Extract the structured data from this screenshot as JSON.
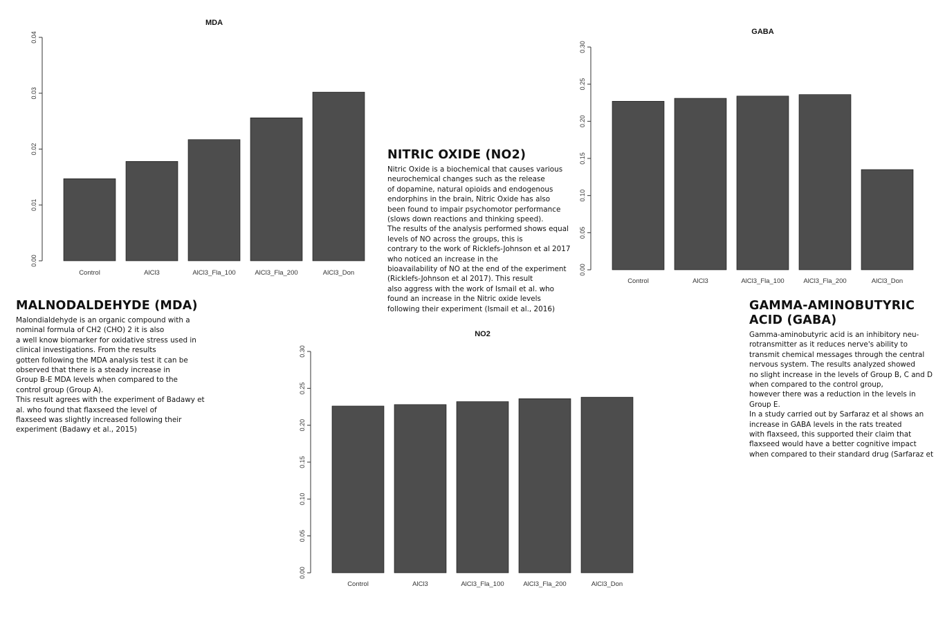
{
  "chart_data": [
    {
      "id": "mda",
      "type": "bar",
      "title": "MDA",
      "categories": [
        "Control",
        "AlCl3",
        "AlCl3_Fla_100",
        "AlCl3_Fla_200",
        "AlCl3_Don"
      ],
      "values": [
        0.0147,
        0.0178,
        0.0217,
        0.0256,
        0.0302
      ],
      "ylim": [
        0,
        0.04
      ],
      "yticks": [
        "0.00",
        "0.01",
        "0.02",
        "0.03",
        "0.04"
      ],
      "xlabel": "",
      "ylabel": "",
      "grid": false
    },
    {
      "id": "gaba",
      "type": "bar",
      "title": "GABA",
      "categories": [
        "Control",
        "AlCl3",
        "AlCl3_Fla_100",
        "AlCl3_Fla_200",
        "AlCl3_Don"
      ],
      "values": [
        0.227,
        0.231,
        0.234,
        0.236,
        0.135
      ],
      "ylim": [
        0,
        0.3
      ],
      "yticks": [
        "0.00",
        "0.05",
        "0.10",
        "0.15",
        "0.20",
        "0.25",
        "0.30"
      ],
      "xlabel": "",
      "ylabel": "",
      "grid": false
    },
    {
      "id": "no2",
      "type": "bar",
      "title": "NO2",
      "categories": [
        "Control",
        "AlCl3",
        "AlCl3_Fla_100",
        "AlCl3_Fla_200",
        "AlCl3_Don"
      ],
      "values": [
        0.226,
        0.228,
        0.232,
        0.236,
        0.238
      ],
      "ylim": [
        0,
        0.3
      ],
      "yticks": [
        "0.00",
        "0.05",
        "0.10",
        "0.15",
        "0.20",
        "0.25",
        "0.30"
      ],
      "xlabel": "",
      "ylabel": "",
      "grid": false
    }
  ],
  "colors": {
    "bar_fill": "#4d4d4d",
    "bar_stroke": "#111111",
    "text": "#111111"
  },
  "sections": {
    "nitric": {
      "heading": "NITRIC OXIDE (NO2)",
      "lines": [
        "Nitric Oxide is a biochemical that causes various",
        "neurochemical changes such as the release",
        "of dopamine, natural opioids and endogenous",
        "endorphins in the brain, Nitric Oxide has also",
        "been found to impair psychomotor performance",
        "(slows down reactions and thinking speed).",
        "The results of the analysis performed shows equal",
        "levels of NO across the groups, this is",
        "contrary to the work of Ricklefs-Johnson et al 2017",
        "who noticed an increase in the",
        "bioavailability of NO at the end of the experiment",
        "(Ricklefs-Johnson et al 2017). This result",
        "also aggress with the work of Ismail et al. who",
        "found an increase in the Nitric oxide levels",
        "following their experiment (Ismail et al., 2016)"
      ]
    },
    "mda": {
      "heading": "MALNODALDEHYDE (MDA)",
      "lines": [
        "Malondialdehyde is an organic compound with a",
        "nominal formula of CH2 (CHO) 2 it is also",
        "a well know biomarker for oxidative stress used in",
        "clinical investigations. From the results",
        "gotten following the MDA analysis test it can be",
        "observed that there is a steady increase in",
        "Group B-E MDA levels when compared to the",
        "control group (Group A).",
        "This result agrees with the experiment of Badawy et",
        "al. who found that flaxseed the level of",
        "flaxseed was slightly increased following their",
        "experiment (Badawy et al., 2015)"
      ]
    },
    "gaba": {
      "heading_line1": "GAMMA-AMINOBUTYRIC",
      "heading_line2": "ACID (GABA)",
      "lines": [
        "Gamma-aminobutyric acid is an inhibitory neu-",
        "rotransmitter as it reduces nerve's ability to",
        "transmit chemical messages through the central",
        "nervous system. The results analyzed showed",
        "no slight increase in the levels of Group B, C and D",
        "when compared to the control group,",
        "however there was a reduction in the levels in",
        "Group E.",
        "In a study carried out by Sarfaraz et al shows an",
        "increase in GABA levels in the rats treated",
        "with flaxseed, this supported their claim that",
        "flaxseed would have a better cognitive impact",
        "when compared to their standard drug (Sarfaraz et"
      ]
    }
  }
}
